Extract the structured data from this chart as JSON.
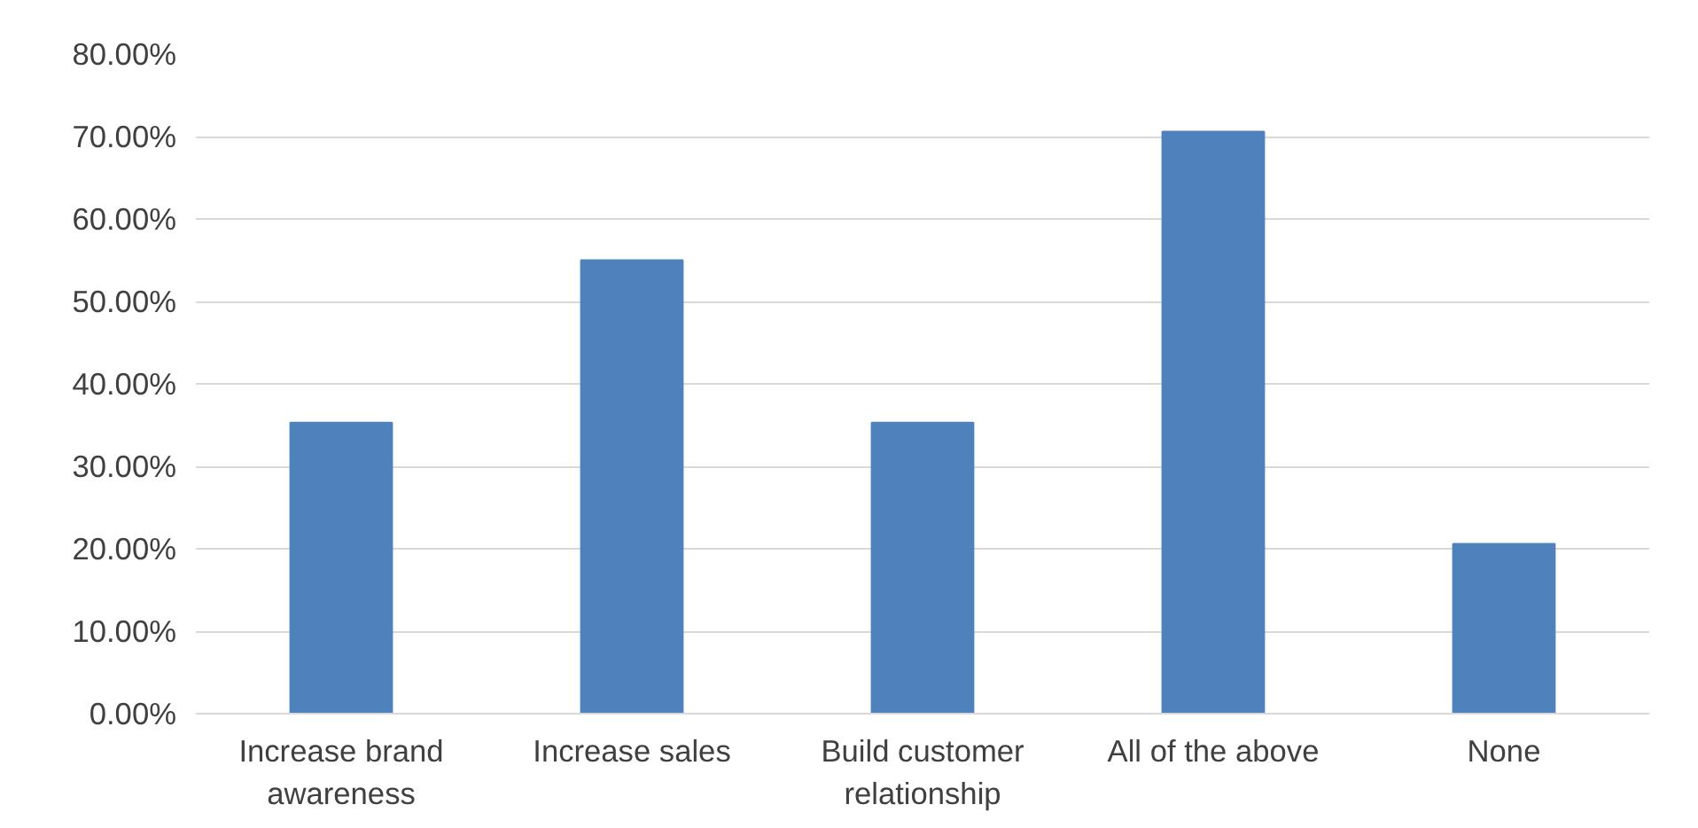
{
  "chart_data": {
    "type": "bar",
    "categories": [
      "Increase brand awareness",
      "Increase sales",
      "Build customer relationship",
      "All of the above",
      "None"
    ],
    "values": [
      35.3,
      55.0,
      35.3,
      70.6,
      20.6
    ],
    "color": "#4f81bd",
    "ylim": [
      0,
      80
    ],
    "yticks": [
      {
        "value": 0,
        "label": "0.00%"
      },
      {
        "value": 10,
        "label": "10.00%"
      },
      {
        "value": 20,
        "label": "20.00%"
      },
      {
        "value": 30,
        "label": "30.00%"
      },
      {
        "value": 40,
        "label": "40.00%"
      },
      {
        "value": 50,
        "label": "50.00%"
      },
      {
        "value": 60,
        "label": "60.00%"
      },
      {
        "value": 70,
        "label": "70.00%"
      },
      {
        "value": 80,
        "label": "80.00%"
      }
    ],
    "grid": "y"
  }
}
